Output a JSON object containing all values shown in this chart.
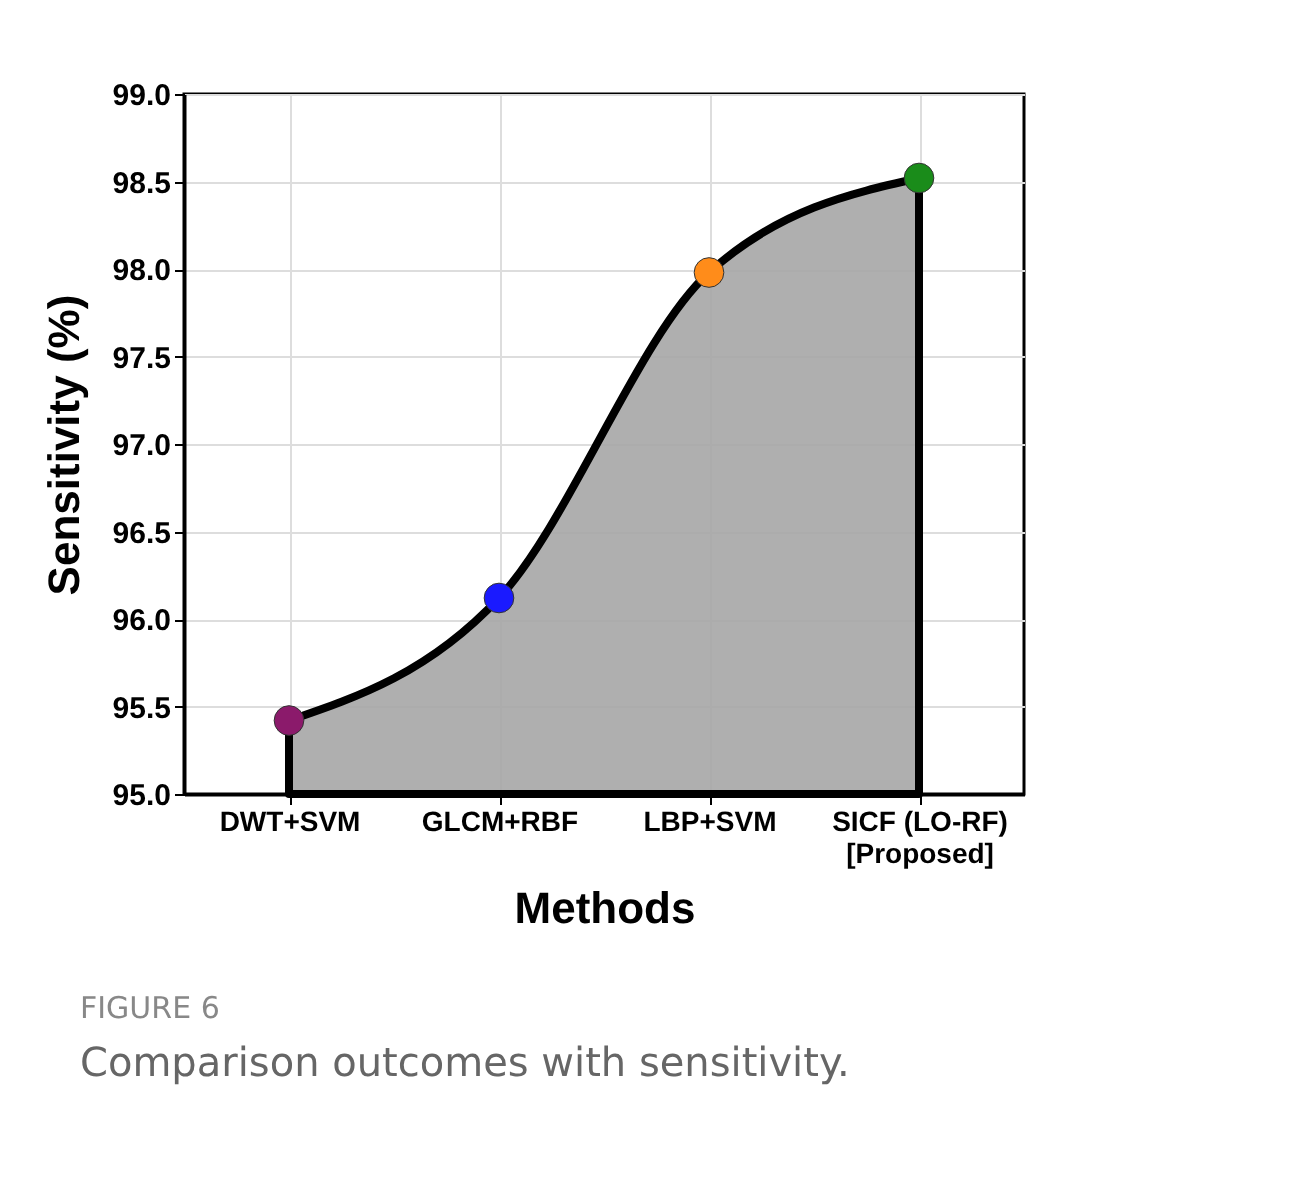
{
  "chart_data": {
    "type": "area",
    "xlabel": "Methods",
    "ylabel": "Sensitivity (%)",
    "categories": [
      "DWT+SVM",
      "GLCM+RBF",
      "LBP+SVM",
      "SICF (LO-RF)\n[Proposed]"
    ],
    "values": [
      95.42,
      96.12,
      97.98,
      98.52
    ],
    "color": "#a6a6a6",
    "colors": [
      "#8b1a6b",
      "#1a1aff",
      "#ff8c1a",
      "#1a8c1a"
    ],
    "marker": "circle",
    "ylim": [
      95,
      99
    ],
    "yticks": [
      {
        "value": 95,
        "label": "95.0"
      },
      {
        "value": 95.5,
        "label": "95.5"
      },
      {
        "value": 96,
        "label": "96.0"
      },
      {
        "value": 96.5,
        "label": "96.5"
      },
      {
        "value": 97,
        "label": "97.0"
      },
      {
        "value": 97.5,
        "label": "97.5"
      },
      {
        "value": 98,
        "label": "98.0"
      },
      {
        "value": 98.5,
        "label": "98.5"
      },
      {
        "value": 99,
        "label": "99.0"
      }
    ],
    "grid": true,
    "annotations": [
      "FIGURE 6",
      "Comparison outcomes with sensitivity."
    ]
  }
}
